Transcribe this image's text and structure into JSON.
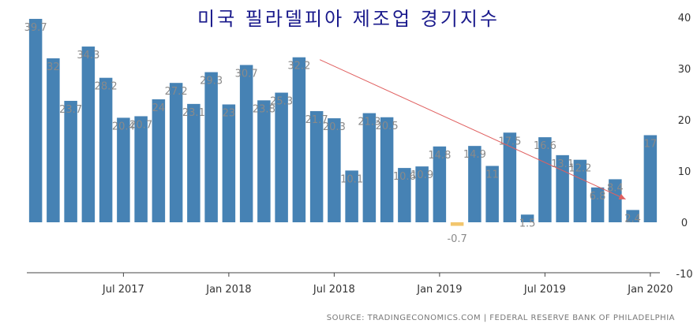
{
  "chart_data": {
    "type": "bar",
    "title": "미국 필라델피아 제조업 경기지수",
    "categories": [
      "2017-02",
      "2017-03",
      "2017-04",
      "2017-05",
      "2017-06",
      "2017-07",
      "2017-08",
      "2017-09",
      "2017-10",
      "2017-11",
      "2017-12",
      "2018-01",
      "2018-02",
      "2018-03",
      "2018-04",
      "2018-05",
      "2018-06",
      "2018-07",
      "2018-08",
      "2018-09",
      "2018-10",
      "2018-11",
      "2018-12",
      "2019-01",
      "2019-02",
      "2019-03",
      "2019-04",
      "2019-05",
      "2019-06",
      "2019-07",
      "2019-08",
      "2019-09",
      "2019-10",
      "2019-11",
      "2019-12",
      "2020-01"
    ],
    "values": [
      39.7,
      32,
      23.7,
      34.3,
      28.2,
      20.4,
      20.7,
      24,
      27.2,
      23.1,
      29.3,
      23,
      30.7,
      23.8,
      25.3,
      32.2,
      21.7,
      20.3,
      10.1,
      21.3,
      20.5,
      10.6,
      10.9,
      14.8,
      -0.7,
      14.9,
      11,
      17.5,
      1.5,
      16.6,
      13.1,
      12.2,
      6.8,
      8.4,
      2.4,
      17
    ],
    "data_labels": [
      "39.7",
      "32",
      "23.7",
      "34.3",
      "28.2",
      "20.4",
      "20.7",
      "24",
      "27.2",
      "23.1",
      "29.3",
      "23",
      "30.7",
      "23.8",
      "25.3",
      "32.2",
      "21.7",
      "20.3",
      "10.1",
      "21.3",
      "20.5",
      "10.6",
      "10.9",
      "14.8",
      "-0.7",
      "14.9",
      "11",
      "17.5",
      "1.5",
      "16.6",
      "13.1",
      "12.2",
      "6.8",
      "8.4",
      "2.4",
      "17"
    ],
    "x_ticks": [
      "Jul 2017",
      "Jan 2018",
      "Jul 2018",
      "Jan 2019",
      "Jul 2019",
      "Jan 2020"
    ],
    "y_ticks": [
      "40",
      "30",
      "20",
      "10",
      "0",
      "-10"
    ],
    "ylim": [
      -10,
      40
    ],
    "xlabel": "",
    "ylabel": "",
    "trendline": {
      "from_value": 32.2,
      "to_value": 4.5,
      "color": "#e06060"
    },
    "colors": {
      "positive": "#4682b4",
      "negative": "#f2c66d",
      "label": "#8a8a8a",
      "axis": "#333333",
      "title": "#1a1a8c"
    },
    "grid": false,
    "y_axis_position": "right"
  },
  "source": "SOURCE: TRADINGECONOMICS.COM  |  FEDERAL RESERVE BANK OF PHILADELPHIA"
}
